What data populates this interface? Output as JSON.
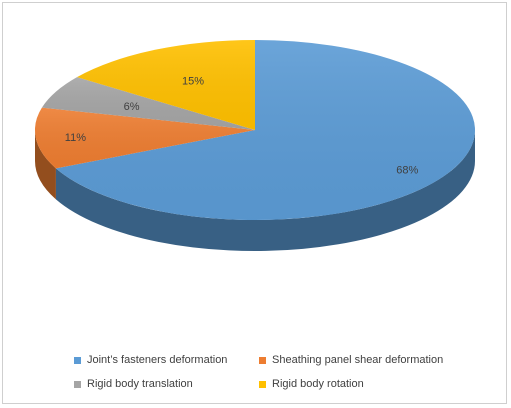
{
  "chart_data": {
    "type": "pie",
    "title": "",
    "categories": [
      "Joint’s fasteners deformation",
      "Sheathing panel shear deformation",
      "Rigid body translation",
      "Rigid body rotation"
    ],
    "values": [
      68,
      11,
      6,
      15
    ],
    "labels": [
      "68%",
      "11%",
      "6%",
      "15%"
    ],
    "colors": [
      "#5b9bd5",
      "#ed7d31",
      "#a5a5a5",
      "#ffc000"
    ],
    "legend_position": "bottom",
    "style": "3d"
  }
}
